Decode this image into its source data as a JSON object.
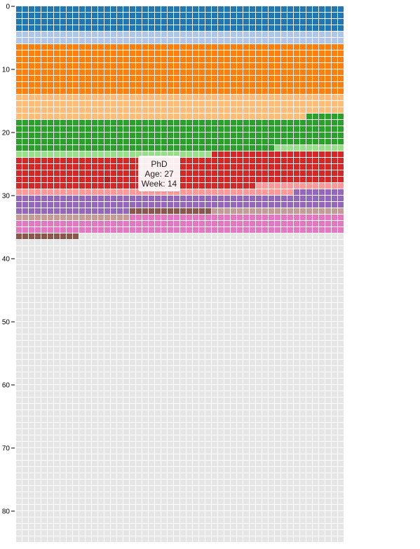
{
  "chart_data": {
    "type": "heatmap",
    "title": "",
    "xlabel": "",
    "ylabel": "",
    "weeks_per_year": 52,
    "years": 85,
    "y_ticks": [
      0,
      10,
      20,
      30,
      40,
      50,
      60,
      70,
      80
    ],
    "y_tick_labels": [
      "0",
      "10",
      "20",
      "30",
      "40",
      "50",
      "60",
      "70",
      "80"
    ],
    "empty_color": "#e5e5e5",
    "segments": [
      {
        "name": "",
        "start": [
          0,
          0
        ],
        "end": [
          4,
          0
        ],
        "color": "#1f77b4"
      },
      {
        "name": "",
        "start": [
          4,
          0
        ],
        "end": [
          6,
          0
        ],
        "color": "#aec7e8"
      },
      {
        "name": "",
        "start": [
          6,
          0
        ],
        "end": [
          14,
          0
        ],
        "color": "#ff7f0e"
      },
      {
        "name": "",
        "start": [
          14,
          0
        ],
        "end": [
          17,
          46
        ],
        "color": "#ffbb78"
      },
      {
        "name": "",
        "start": [
          17,
          46
        ],
        "end": [
          22,
          41
        ],
        "color": "#2ca02c"
      },
      {
        "name": "",
        "start": [
          22,
          41
        ],
        "end": [
          23,
          31
        ],
        "color": "#98df8a"
      },
      {
        "name": "",
        "start": [
          23,
          31
        ],
        "end": [
          28,
          38
        ],
        "color": "#d62728"
      },
      {
        "name": "",
        "start": [
          28,
          38
        ],
        "end": [
          29,
          44
        ],
        "color": "#ff9896"
      },
      {
        "name": "",
        "start": [
          29,
          44
        ],
        "end": [
          32,
          18
        ],
        "color": "#9467bd"
      },
      {
        "name": "",
        "start": [
          32,
          18
        ],
        "end": [
          32,
          31
        ],
        "color": "#c5b0d5"
      },
      {
        "name": "",
        "start": [
          32,
          31
        ],
        "end": [
          33,
          18
        ],
        "color": "#c49c94"
      },
      {
        "name": "",
        "start": [
          33,
          18
        ],
        "end": [
          35,
          52
        ],
        "color": "#e377c2"
      },
      {
        "name": "",
        "start": [
          36,
          0
        ],
        "end": [
          36,
          10
        ],
        "color": "#8c564b"
      }
    ],
    "highlights": [
      {
        "age": 32,
        "week_start": 18,
        "week_end": 31,
        "color": "#8c564b"
      },
      {
        "age": 27,
        "week": 14,
        "color": "#b22222"
      }
    ],
    "tooltip": {
      "label": "PhD",
      "age_text": "Age: 27",
      "week_text": "Week: 14"
    }
  }
}
